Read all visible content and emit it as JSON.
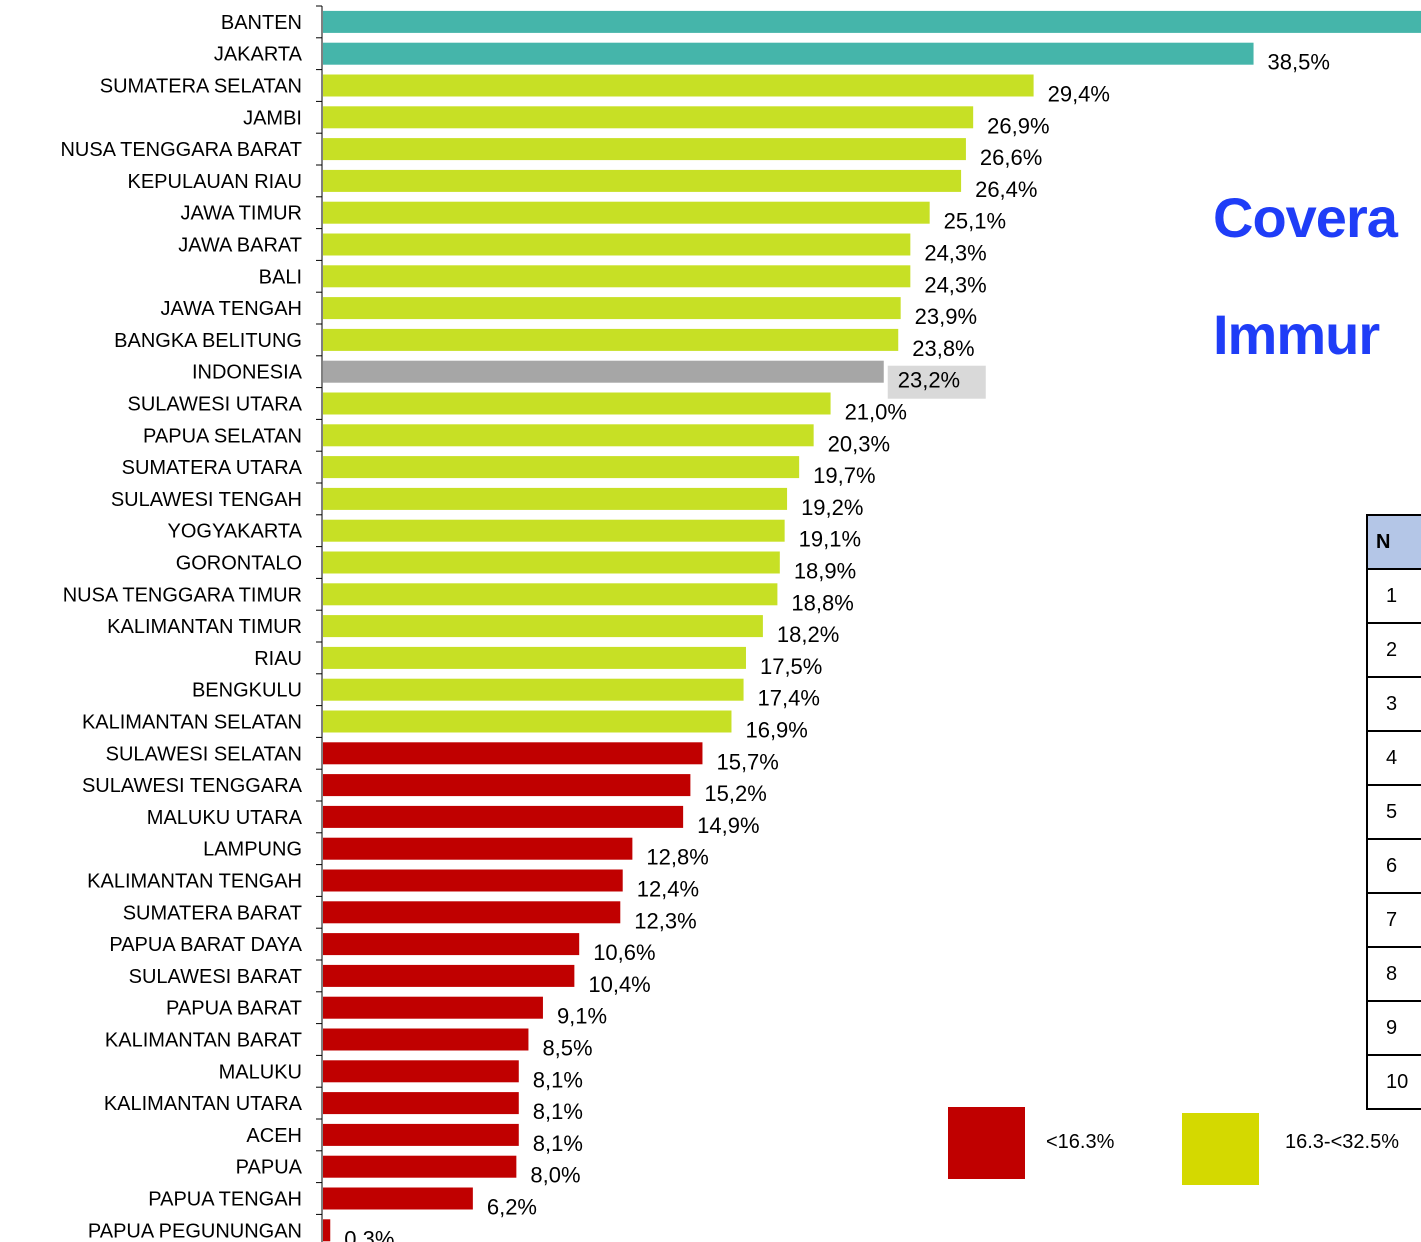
{
  "chart_data": {
    "type": "bar",
    "orientation": "horizontal",
    "categories": [
      "BANTEN",
      "JAKARTA",
      "SUMATERA SELATAN",
      "JAMBI",
      "NUSA TENGGARA BARAT",
      "KEPULAUAN RIAU",
      "JAWA TIMUR",
      "JAWA BARAT",
      "BALI",
      "JAWA TENGAH",
      "BANGKA BELITUNG",
      "INDONESIA",
      "SULAWESI UTARA",
      "PAPUA SELATAN",
      "SUMATERA UTARA",
      "SULAWESI TENGAH",
      "YOGYAKARTA",
      "GORONTALO",
      "NUSA TENGGARA TIMUR",
      "KALIMANTAN TIMUR",
      "RIAU",
      "BENGKULU",
      "KALIMANTAN SELATAN",
      "SULAWESI SELATAN",
      "SULAWESI TENGGARA",
      "MALUKU UTARA",
      "LAMPUNG",
      "KALIMANTAN TENGAH",
      "SUMATERA BARAT",
      "PAPUA BARAT DAYA",
      "SULAWESI BARAT",
      "PAPUA BARAT",
      "KALIMANTAN BARAT",
      "MALUKU",
      "KALIMANTAN UTARA",
      "ACEH",
      "PAPUA",
      "PAPUA TENGAH",
      "PAPUA PEGUNUNGAN"
    ],
    "values": [
      46.0,
      38.5,
      29.4,
      26.9,
      26.6,
      26.4,
      25.1,
      24.3,
      24.3,
      23.9,
      23.8,
      23.2,
      21.0,
      20.3,
      19.7,
      19.2,
      19.1,
      18.9,
      18.8,
      18.2,
      17.5,
      17.4,
      16.9,
      15.7,
      15.2,
      14.9,
      12.8,
      12.4,
      12.3,
      10.6,
      10.4,
      9.1,
      8.5,
      8.1,
      8.1,
      8.1,
      8.0,
      6.2,
      0.3
    ],
    "value_labels": [
      "",
      "38,5%",
      "29,4%",
      "26,9%",
      "26,6%",
      "26,4%",
      "25,1%",
      "24,3%",
      "24,3%",
      "23,9%",
      "23,8%",
      "23,2%",
      "21,0%",
      "20,3%",
      "19,7%",
      "19,2%",
      "19,1%",
      "18,9%",
      "18,8%",
      "18,2%",
      "17,5%",
      "17,4%",
      "16,9%",
      "15,7%",
      "15,2%",
      "14,9%",
      "12,8%",
      "12,4%",
      "12,3%",
      "10,6%",
      "10,4%",
      "9,1%",
      "8,5%",
      "8,1%",
      "8,1%",
      "8,1%",
      "8,0%",
      "6,2%",
      "0,3%"
    ],
    "bar_colors": [
      "teal",
      "teal",
      "lime",
      "lime",
      "lime",
      "lime",
      "lime",
      "lime",
      "lime",
      "lime",
      "lime",
      "gray",
      "lime",
      "lime",
      "lime",
      "lime",
      "lime",
      "lime",
      "lime",
      "lime",
      "lime",
      "lime",
      "lime",
      "red",
      "red",
      "red",
      "red",
      "red",
      "red",
      "red",
      "red",
      "red",
      "red",
      "red",
      "red",
      "red",
      "red",
      "red",
      "red"
    ],
    "highlight_label_index": 11,
    "title": "",
    "xlabel": "",
    "ylabel": "",
    "grid": false
  },
  "colors": {
    "teal": "#45b5aa",
    "lime": "#c7e025",
    "gray": "#a6a6a6",
    "red": "#c00000",
    "legend_yellow": "#d4d900",
    "title": "#1f3df7",
    "table_header": "#b4c6e7",
    "highlight_label_bg": "#d9d9d9"
  },
  "side_title": {
    "line1": "Covera",
    "line2": "Immur"
  },
  "rank_table": {
    "header": "N",
    "rows": [
      "1",
      "2",
      "3",
      "4",
      "5",
      "6",
      "7",
      "8",
      "9",
      "10"
    ]
  },
  "legend": [
    {
      "color": "red",
      "label": "<16.3%"
    },
    {
      "color": "legend_yellow",
      "label": "16.3-<32.5%"
    }
  ]
}
